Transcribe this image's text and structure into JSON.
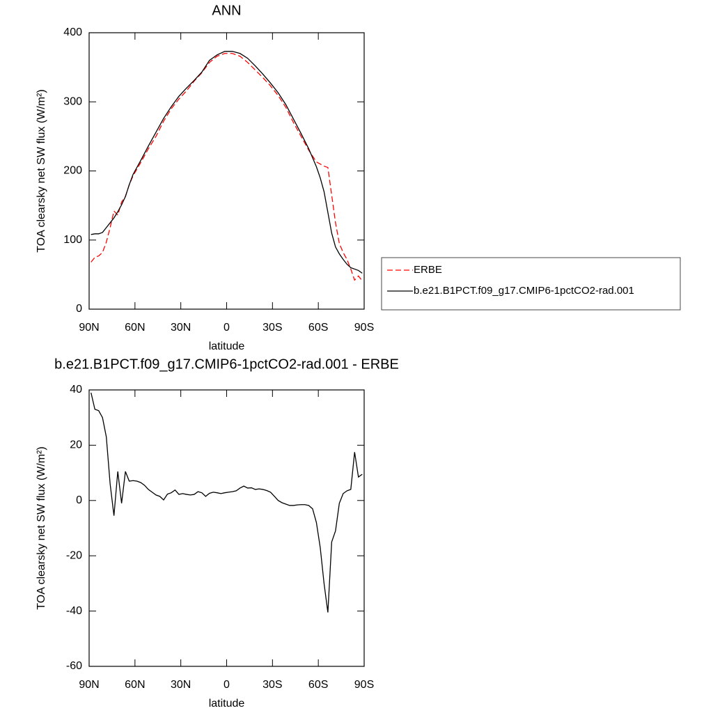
{
  "chart_data": [
    {
      "type": "line",
      "title": "ANN",
      "xlabel": "latitude",
      "ylabel": "TOA clearsky net SW flux (W/m²)",
      "x": [
        88.75,
        86.25,
        83.75,
        81.25,
        78.75,
        76.25,
        73.75,
        71.25,
        68.75,
        66.25,
        63.75,
        61.25,
        56.25,
        51.25,
        46.25,
        41.25,
        36.25,
        31.25,
        26.25,
        21.25,
        16.25,
        11.25,
        6.25,
        1.25,
        -3.75,
        -8.75,
        -13.75,
        -18.75,
        -23.75,
        -28.75,
        -33.75,
        -38.75,
        -43.75,
        -48.75,
        -53.75,
        -58.75,
        -61.25,
        -63.75,
        -66.25,
        -68.75,
        -71.25,
        -73.75,
        -76.25,
        -78.75,
        -81.25,
        -83.75,
        -86.25,
        -88.75
      ],
      "series": [
        {
          "name": "ERBE",
          "color": "#ff0000",
          "line_style": "dashed",
          "values": [
            68,
            75,
            77,
            82,
            97,
            118,
            142,
            136,
            155,
            163,
            180,
            193,
            212,
            232,
            250,
            272,
            290,
            304,
            316,
            330,
            342,
            357,
            366,
            370,
            370,
            366,
            357,
            346,
            335,
            323,
            309,
            292,
            270,
            250,
            230,
            213,
            210,
            207,
            205,
            165,
            125,
            95,
            82,
            72,
            58,
            42,
            48,
            41
          ]
        },
        {
          "name": "b.e21.B1PCT.f09_g17.CMIP6-1pctCO2-rad.001",
          "color": "#000000",
          "line_style": "solid",
          "values": [
            108,
            109,
            109,
            111,
            118,
            125,
            132,
            141,
            151,
            163,
            180,
            195,
            215,
            236,
            256,
            276,
            293,
            308,
            320,
            331,
            343,
            360,
            368,
            373,
            373,
            370,
            363,
            352,
            340,
            327,
            313,
            296,
            275,
            254,
            232,
            206,
            190,
            170,
            140,
            110,
            90,
            80,
            72,
            65,
            60,
            58,
            56,
            52
          ]
        }
      ],
      "xlim": [
        90,
        -90
      ],
      "xticks": [
        {
          "value": 90,
          "label": "90N"
        },
        {
          "value": 60,
          "label": "60N"
        },
        {
          "value": 30,
          "label": "30N"
        },
        0,
        {
          "value": -30,
          "label": "30S"
        },
        {
          "value": -60,
          "label": "60S"
        },
        {
          "value": -90,
          "label": "90S"
        }
      ],
      "ylim": [
        0,
        400
      ],
      "yticks": [
        0,
        100,
        200,
        300,
        400
      ],
      "legend": "right"
    },
    {
      "type": "line",
      "title": "b.e21.B1PCT.f09_g17.CMIP6-1pctCO2-rad.001 - ERBE",
      "xlabel": "latitude",
      "ylabel": "TOA clearsky net SW flux (W/m²)",
      "x": [
        88.75,
        86.25,
        83.75,
        81.25,
        78.75,
        76.25,
        73.75,
        71.25,
        68.75,
        66.25,
        63.75,
        61.25,
        58.75,
        56.25,
        53.75,
        51.25,
        48.75,
        46.25,
        43.75,
        41.25,
        38.75,
        36.25,
        33.75,
        31.25,
        28.75,
        26.25,
        23.75,
        21.25,
        18.75,
        16.25,
        13.75,
        11.25,
        8.75,
        6.25,
        3.75,
        1.25,
        -1.25,
        -3.75,
        -6.25,
        -8.75,
        -11.25,
        -13.75,
        -16.25,
        -18.75,
        -21.25,
        -23.75,
        -26.25,
        -28.75,
        -31.25,
        -33.75,
        -36.25,
        -38.75,
        -41.25,
        -43.75,
        -46.25,
        -48.75,
        -51.25,
        -53.75,
        -56.25,
        -58.75,
        -61.25,
        -63.75,
        -66.25,
        -68.75,
        -71.25,
        -73.75,
        -76.25,
        -78.75,
        -81.25,
        -83.75,
        -86.25,
        -88.75
      ],
      "values": [
        39,
        33,
        32.5,
        30,
        23,
        6,
        -5.5,
        10.5,
        -1,
        10.5,
        7,
        7.2,
        7,
        6.5,
        5.5,
        4,
        3,
        2,
        1.5,
        0.2,
        2.3,
        2.8,
        3.8,
        2.2,
        2.5,
        2.2,
        2,
        2.2,
        3.2,
        2.8,
        1.5,
        2.6,
        3,
        2.8,
        2.5,
        2.8,
        3,
        3.2,
        3.5,
        4.5,
        5.2,
        4.5,
        4.6,
        4,
        4.2,
        4,
        3.6,
        3,
        1.5,
        0,
        -0.8,
        -1.3,
        -1.8,
        -1.8,
        -1.6,
        -1.5,
        -1.5,
        -1.8,
        -3,
        -8,
        -17,
        -30,
        -40.5,
        -15,
        -11,
        -1,
        2.5,
        3.5,
        4,
        17.5,
        8.5,
        9.5
      ],
      "color": "#000000",
      "xlim": [
        90,
        -90
      ],
      "xticks": [
        {
          "value": 90,
          "label": "90N"
        },
        {
          "value": 60,
          "label": "60N"
        },
        {
          "value": 30,
          "label": "30N"
        },
        0,
        {
          "value": -30,
          "label": "30S"
        },
        {
          "value": -60,
          "label": "60S"
        },
        {
          "value": -90,
          "label": "90S"
        }
      ],
      "ylim": [
        -60,
        40
      ],
      "yticks": [
        -60,
        -40,
        -20,
        0,
        20,
        40
      ]
    }
  ]
}
